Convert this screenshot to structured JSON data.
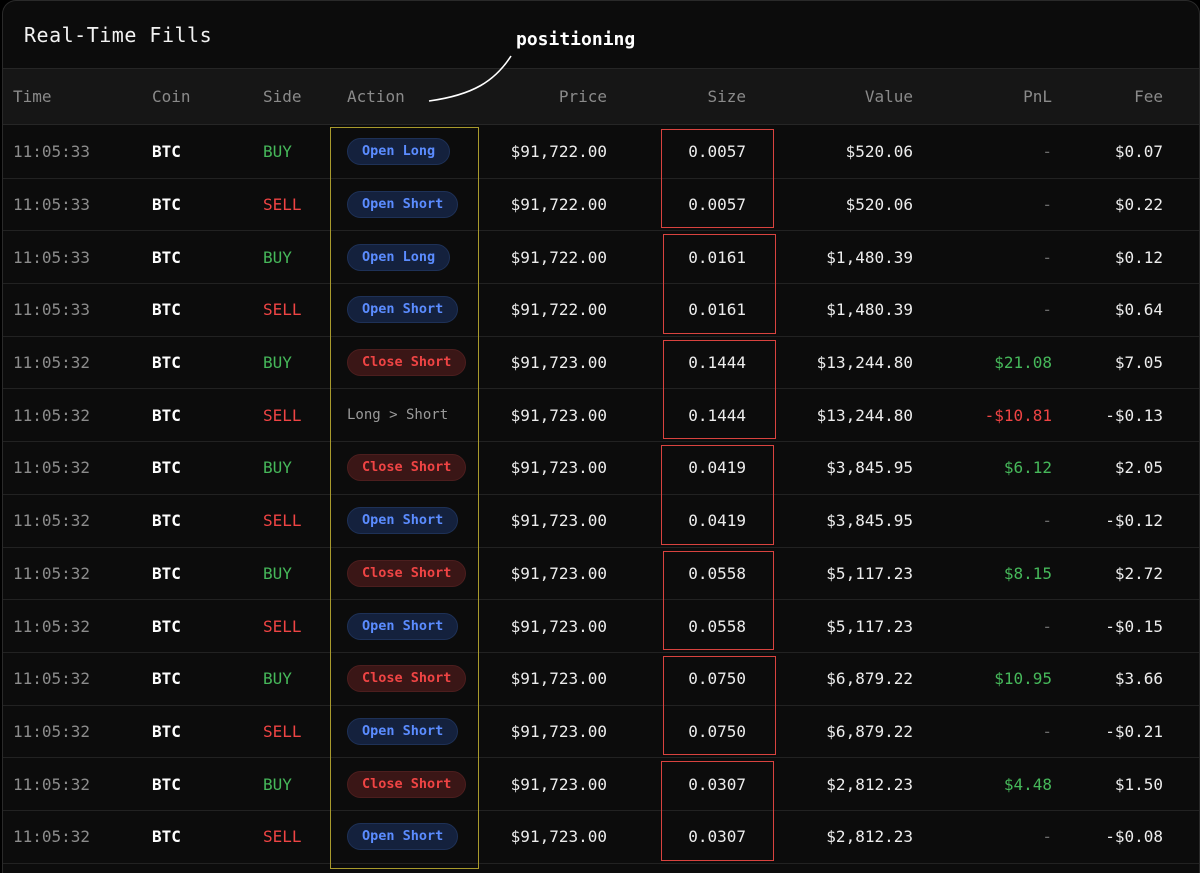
{
  "title": "Real-Time Fills",
  "annotation": "positioning",
  "columns": {
    "time": "Time",
    "coin": "Coin",
    "side": "Side",
    "action": "Action",
    "price": "Price",
    "size": "Size",
    "value": "Value",
    "pnl": "PnL",
    "fee": "Fee"
  },
  "colors": {
    "buy": "#46b85a",
    "sell": "#ef4444",
    "open_pill": "#5b8cff",
    "close_pill": "#ef4444",
    "highlight_yellow": "#a89a2c",
    "highlight_red": "#d9433f"
  },
  "rows": [
    {
      "time": "11:05:33",
      "coin": "BTC",
      "side": "BUY",
      "action": "Open Long",
      "price": "$91,722.00",
      "size": "0.0057",
      "value": "$520.06",
      "pnl": "-",
      "fee": "$0.07"
    },
    {
      "time": "11:05:33",
      "coin": "BTC",
      "side": "SELL",
      "action": "Open Short",
      "price": "$91,722.00",
      "size": "0.0057",
      "value": "$520.06",
      "pnl": "-",
      "fee": "$0.22"
    },
    {
      "time": "11:05:33",
      "coin": "BTC",
      "side": "BUY",
      "action": "Open Long",
      "price": "$91,722.00",
      "size": "0.0161",
      "value": "$1,480.39",
      "pnl": "-",
      "fee": "$0.12"
    },
    {
      "time": "11:05:33",
      "coin": "BTC",
      "side": "SELL",
      "action": "Open Short",
      "price": "$91,722.00",
      "size": "0.0161",
      "value": "$1,480.39",
      "pnl": "-",
      "fee": "$0.64"
    },
    {
      "time": "11:05:32",
      "coin": "BTC",
      "side": "BUY",
      "action": "Close Short",
      "price": "$91,723.00",
      "size": "0.1444",
      "value": "$13,244.80",
      "pnl": "$21.08",
      "fee": "$7.05"
    },
    {
      "time": "11:05:32",
      "coin": "BTC",
      "side": "SELL",
      "action": "Long > Short",
      "price": "$91,723.00",
      "size": "0.1444",
      "value": "$13,244.80",
      "pnl": "-$10.81",
      "fee": "-$0.13"
    },
    {
      "time": "11:05:32",
      "coin": "BTC",
      "side": "BUY",
      "action": "Close Short",
      "price": "$91,723.00",
      "size": "0.0419",
      "value": "$3,845.95",
      "pnl": "$6.12",
      "fee": "$2.05"
    },
    {
      "time": "11:05:32",
      "coin": "BTC",
      "side": "SELL",
      "action": "Open Short",
      "price": "$91,723.00",
      "size": "0.0419",
      "value": "$3,845.95",
      "pnl": "-",
      "fee": "-$0.12"
    },
    {
      "time": "11:05:32",
      "coin": "BTC",
      "side": "BUY",
      "action": "Close Short",
      "price": "$91,723.00",
      "size": "0.0558",
      "value": "$5,117.23",
      "pnl": "$8.15",
      "fee": "$2.72"
    },
    {
      "time": "11:05:32",
      "coin": "BTC",
      "side": "SELL",
      "action": "Open Short",
      "price": "$91,723.00",
      "size": "0.0558",
      "value": "$5,117.23",
      "pnl": "-",
      "fee": "-$0.15"
    },
    {
      "time": "11:05:32",
      "coin": "BTC",
      "side": "BUY",
      "action": "Close Short",
      "price": "$91,723.00",
      "size": "0.0750",
      "value": "$6,879.22",
      "pnl": "$10.95",
      "fee": "$3.66"
    },
    {
      "time": "11:05:32",
      "coin": "BTC",
      "side": "SELL",
      "action": "Open Short",
      "price": "$91,723.00",
      "size": "0.0750",
      "value": "$6,879.22",
      "pnl": "-",
      "fee": "-$0.21"
    },
    {
      "time": "11:05:32",
      "coin": "BTC",
      "side": "BUY",
      "action": "Close Short",
      "price": "$91,723.00",
      "size": "0.0307",
      "value": "$2,812.23",
      "pnl": "$4.48",
      "fee": "$1.50"
    },
    {
      "time": "11:05:32",
      "coin": "BTC",
      "side": "SELL",
      "action": "Open Short",
      "price": "$91,723.00",
      "size": "0.0307",
      "value": "$2,812.23",
      "pnl": "-",
      "fee": "-$0.08"
    }
  ]
}
